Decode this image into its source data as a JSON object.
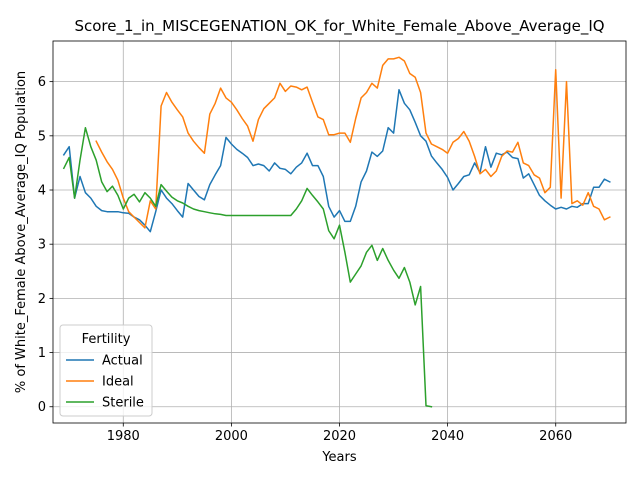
{
  "chart_data": {
    "type": "line",
    "title": "Score_1_in_MISCEGENATION_OK_for_White_Female_Above_Average_IQ",
    "xlabel": "Years",
    "ylabel": "% of White_Female Above_Average_IQ Population",
    "xlim": [
      1967,
      2073
    ],
    "ylim": [
      -0.3,
      6.75
    ],
    "xticks": [
      1980,
      2000,
      2020,
      2040,
      2060
    ],
    "yticks": [
      0,
      1,
      2,
      3,
      4,
      5,
      6
    ],
    "grid": true,
    "legend": {
      "title": "Fertility",
      "placement": "lower-left"
    },
    "series": [
      {
        "name": "Actual",
        "color": "#1f77b4",
        "points": [
          [
            1969,
            4.65
          ],
          [
            1970,
            4.8
          ],
          [
            1971,
            3.85
          ],
          [
            1972,
            4.25
          ],
          [
            1973,
            3.95
          ],
          [
            1974,
            3.85
          ],
          [
            1975,
            3.7
          ],
          [
            1976,
            3.62
          ],
          [
            1977,
            3.6
          ],
          [
            1978,
            3.6
          ],
          [
            1979,
            3.6
          ],
          [
            1980,
            3.58
          ],
          [
            1981,
            3.57
          ],
          [
            1982,
            3.5
          ],
          [
            1983,
            3.45
          ],
          [
            1984,
            3.35
          ],
          [
            1985,
            3.23
          ],
          [
            1986,
            3.6
          ],
          [
            1987,
            4.0
          ],
          [
            1988,
            3.85
          ],
          [
            1989,
            3.75
          ],
          [
            1990,
            3.62
          ],
          [
            1991,
            3.5
          ],
          [
            1992,
            4.12
          ],
          [
            1993,
            4.0
          ],
          [
            1994,
            3.88
          ],
          [
            1995,
            3.82
          ],
          [
            1996,
            4.1
          ],
          [
            1997,
            4.28
          ],
          [
            1998,
            4.45
          ],
          [
            1999,
            4.97
          ],
          [
            2000,
            4.85
          ],
          [
            2001,
            4.75
          ],
          [
            2002,
            4.68
          ],
          [
            2003,
            4.6
          ],
          [
            2004,
            4.45
          ],
          [
            2005,
            4.48
          ],
          [
            2006,
            4.45
          ],
          [
            2007,
            4.35
          ],
          [
            2008,
            4.5
          ],
          [
            2009,
            4.4
          ],
          [
            2010,
            4.38
          ],
          [
            2011,
            4.3
          ],
          [
            2012,
            4.42
          ],
          [
            2013,
            4.5
          ],
          [
            2014,
            4.68
          ],
          [
            2015,
            4.45
          ],
          [
            2016,
            4.45
          ],
          [
            2017,
            4.25
          ],
          [
            2018,
            3.7
          ],
          [
            2019,
            3.5
          ],
          [
            2020,
            3.62
          ],
          [
            2021,
            3.42
          ],
          [
            2022,
            3.42
          ],
          [
            2023,
            3.7
          ],
          [
            2024,
            4.15
          ],
          [
            2025,
            4.35
          ],
          [
            2026,
            4.7
          ],
          [
            2027,
            4.62
          ],
          [
            2028,
            4.72
          ],
          [
            2029,
            5.15
          ],
          [
            2030,
            5.05
          ],
          [
            2031,
            5.85
          ],
          [
            2032,
            5.6
          ],
          [
            2033,
            5.48
          ],
          [
            2034,
            5.25
          ],
          [
            2035,
            5.0
          ],
          [
            2036,
            4.9
          ],
          [
            2037,
            4.63
          ],
          [
            2038,
            4.5
          ],
          [
            2039,
            4.38
          ],
          [
            2040,
            4.23
          ],
          [
            2041,
            4.0
          ],
          [
            2042,
            4.12
          ],
          [
            2043,
            4.25
          ],
          [
            2044,
            4.28
          ],
          [
            2045,
            4.5
          ],
          [
            2046,
            4.32
          ],
          [
            2047,
            4.8
          ],
          [
            2048,
            4.42
          ],
          [
            2049,
            4.68
          ],
          [
            2050,
            4.65
          ],
          [
            2051,
            4.7
          ],
          [
            2052,
            4.6
          ],
          [
            2053,
            4.58
          ],
          [
            2054,
            4.22
          ],
          [
            2055,
            4.3
          ],
          [
            2056,
            4.1
          ],
          [
            2057,
            3.9
          ],
          [
            2058,
            3.8
          ],
          [
            2059,
            3.72
          ],
          [
            2060,
            3.65
          ],
          [
            2061,
            3.68
          ],
          [
            2062,
            3.65
          ],
          [
            2063,
            3.7
          ],
          [
            2064,
            3.68
          ],
          [
            2065,
            3.75
          ],
          [
            2066,
            3.75
          ],
          [
            2067,
            4.05
          ],
          [
            2068,
            4.05
          ],
          [
            2069,
            4.2
          ],
          [
            2070,
            4.15
          ]
        ]
      },
      {
        "name": "Ideal",
        "color": "#ff7f0e",
        "points": [
          [
            1975,
            4.9
          ],
          [
            1976,
            4.7
          ],
          [
            1977,
            4.52
          ],
          [
            1978,
            4.38
          ],
          [
            1979,
            4.18
          ],
          [
            1980,
            3.85
          ],
          [
            1981,
            3.6
          ],
          [
            1982,
            3.5
          ],
          [
            1983,
            3.4
          ],
          [
            1984,
            3.3
          ],
          [
            1985,
            3.8
          ],
          [
            1986,
            3.65
          ],
          [
            1987,
            5.55
          ],
          [
            1988,
            5.8
          ],
          [
            1989,
            5.62
          ],
          [
            1990,
            5.48
          ],
          [
            1991,
            5.35
          ],
          [
            1992,
            5.05
          ],
          [
            1993,
            4.9
          ],
          [
            1994,
            4.78
          ],
          [
            1995,
            4.68
          ],
          [
            1996,
            5.4
          ],
          [
            1997,
            5.6
          ],
          [
            1998,
            5.88
          ],
          [
            1999,
            5.7
          ],
          [
            2000,
            5.62
          ],
          [
            2001,
            5.48
          ],
          [
            2002,
            5.32
          ],
          [
            2003,
            5.18
          ],
          [
            2004,
            4.9
          ],
          [
            2005,
            5.3
          ],
          [
            2006,
            5.5
          ],
          [
            2007,
            5.6
          ],
          [
            2008,
            5.7
          ],
          [
            2009,
            5.97
          ],
          [
            2010,
            5.82
          ],
          [
            2011,
            5.92
          ],
          [
            2012,
            5.9
          ],
          [
            2013,
            5.85
          ],
          [
            2014,
            5.9
          ],
          [
            2015,
            5.62
          ],
          [
            2016,
            5.35
          ],
          [
            2017,
            5.3
          ],
          [
            2018,
            5.02
          ],
          [
            2019,
            5.02
          ],
          [
            2020,
            5.05
          ],
          [
            2021,
            5.05
          ],
          [
            2022,
            4.88
          ],
          [
            2023,
            5.32
          ],
          [
            2024,
            5.7
          ],
          [
            2025,
            5.8
          ],
          [
            2026,
            5.97
          ],
          [
            2027,
            5.88
          ],
          [
            2028,
            6.3
          ],
          [
            2029,
            6.42
          ],
          [
            2030,
            6.42
          ],
          [
            2031,
            6.45
          ],
          [
            2032,
            6.38
          ],
          [
            2033,
            6.15
          ],
          [
            2034,
            6.08
          ],
          [
            2035,
            5.8
          ],
          [
            2036,
            5.05
          ],
          [
            2037,
            4.85
          ],
          [
            2038,
            4.8
          ],
          [
            2039,
            4.75
          ],
          [
            2040,
            4.68
          ],
          [
            2041,
            4.88
          ],
          [
            2042,
            4.95
          ],
          [
            2043,
            5.08
          ],
          [
            2044,
            4.9
          ],
          [
            2045,
            4.62
          ],
          [
            2046,
            4.3
          ],
          [
            2047,
            4.38
          ],
          [
            2048,
            4.25
          ],
          [
            2049,
            4.35
          ],
          [
            2050,
            4.62
          ],
          [
            2051,
            4.72
          ],
          [
            2052,
            4.7
          ],
          [
            2053,
            4.88
          ],
          [
            2054,
            4.5
          ],
          [
            2055,
            4.45
          ],
          [
            2056,
            4.28
          ],
          [
            2057,
            4.22
          ],
          [
            2058,
            3.95
          ],
          [
            2059,
            4.05
          ],
          [
            2060,
            6.22
          ],
          [
            2061,
            3.85
          ],
          [
            2062,
            6.0
          ],
          [
            2063,
            3.75
          ],
          [
            2064,
            3.8
          ],
          [
            2065,
            3.72
          ],
          [
            2066,
            3.95
          ],
          [
            2067,
            3.7
          ],
          [
            2068,
            3.65
          ],
          [
            2069,
            3.45
          ],
          [
            2070,
            3.5
          ]
        ]
      },
      {
        "name": "Sterile",
        "color": "#2ca02c",
        "points": [
          [
            1969,
            4.4
          ],
          [
            1970,
            4.6
          ],
          [
            1971,
            3.85
          ],
          [
            1972,
            4.55
          ],
          [
            1973,
            5.15
          ],
          [
            1974,
            4.8
          ],
          [
            1975,
            4.55
          ],
          [
            1976,
            4.15
          ],
          [
            1977,
            3.97
          ],
          [
            1978,
            4.07
          ],
          [
            1979,
            3.9
          ],
          [
            1980,
            3.65
          ],
          [
            1981,
            3.85
          ],
          [
            1982,
            3.92
          ],
          [
            1983,
            3.78
          ],
          [
            1984,
            3.95
          ],
          [
            1985,
            3.85
          ],
          [
            1986,
            3.7
          ],
          [
            1987,
            4.1
          ],
          [
            1988,
            3.98
          ],
          [
            1989,
            3.87
          ],
          [
            1990,
            3.8
          ],
          [
            1991,
            3.76
          ],
          [
            1992,
            3.7
          ],
          [
            1993,
            3.65
          ],
          [
            1994,
            3.62
          ],
          [
            1995,
            3.6
          ],
          [
            1996,
            3.58
          ],
          [
            1997,
            3.56
          ],
          [
            1998,
            3.55
          ],
          [
            1999,
            3.53
          ],
          [
            2000,
            3.53
          ],
          [
            2002,
            3.53
          ],
          [
            2005,
            3.53
          ],
          [
            2008,
            3.53
          ],
          [
            2011,
            3.53
          ],
          [
            2012,
            3.65
          ],
          [
            2013,
            3.8
          ],
          [
            2014,
            4.03
          ],
          [
            2015,
            3.9
          ],
          [
            2016,
            3.78
          ],
          [
            2017,
            3.65
          ],
          [
            2018,
            3.25
          ],
          [
            2019,
            3.1
          ],
          [
            2020,
            3.35
          ],
          [
            2021,
            2.85
          ],
          [
            2022,
            2.3
          ],
          [
            2023,
            2.45
          ],
          [
            2024,
            2.6
          ],
          [
            2025,
            2.85
          ],
          [
            2026,
            2.98
          ],
          [
            2027,
            2.7
          ],
          [
            2028,
            2.92
          ],
          [
            2029,
            2.7
          ],
          [
            2030,
            2.52
          ],
          [
            2031,
            2.37
          ],
          [
            2032,
            2.57
          ],
          [
            2033,
            2.3
          ],
          [
            2034,
            1.88
          ],
          [
            2035,
            2.22
          ],
          [
            2036,
            0.02
          ],
          [
            2037,
            0.0
          ]
        ]
      }
    ]
  }
}
